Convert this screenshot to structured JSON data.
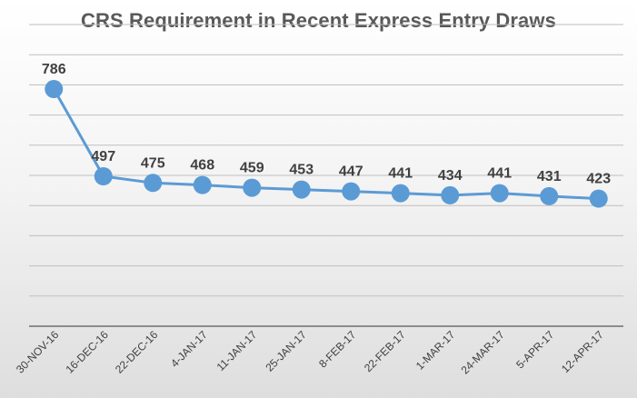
{
  "chart_data": {
    "type": "line",
    "title": "CRS Requirement in Recent Express Entry Draws",
    "xlabel": "",
    "ylabel": "",
    "categories": [
      "30-NOV-16",
      "16-DEC-16",
      "22-DEC-16",
      "4-JAN-17",
      "11-JAN-17",
      "25-JAN-17",
      "8-FEB-17",
      "22-FEB-17",
      "1-MAR-17",
      "24-MAR-17",
      "5-APR-17",
      "12-APR-17"
    ],
    "series": [
      {
        "values": [
          786,
          497,
          475,
          468,
          459,
          453,
          447,
          441,
          434,
          441,
          431,
          423
        ],
        "color": "#5b9bd5"
      }
    ],
    "ylim": [
      0,
      1000
    ],
    "grid": true,
    "legend": "none",
    "data_labels": true
  }
}
